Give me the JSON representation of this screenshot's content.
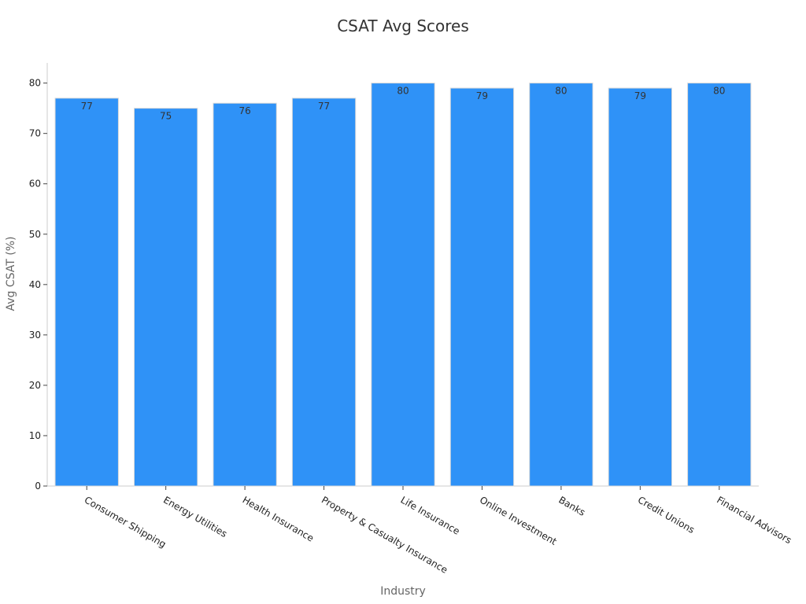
{
  "chart_data": {
    "type": "bar",
    "title": "CSAT Avg Scores",
    "xlabel": "Industry",
    "ylabel": "Avg CSAT (%)",
    "categories": [
      "Consumer Shipping",
      "Energy Utilities",
      "Health Insurance",
      "Property & Casualty Insurance",
      "Life Insurance",
      "Online Investment",
      "Banks",
      "Credit Unions",
      "Financial Advisors"
    ],
    "values": [
      77,
      75,
      76,
      77,
      80,
      79,
      80,
      79,
      80
    ],
    "ylim": [
      0,
      84
    ],
    "yticks": [
      0,
      10,
      20,
      30,
      40,
      50,
      60,
      70,
      80
    ],
    "grid": false,
    "bar_color": "#2f92f7",
    "show_data_labels": true
  }
}
